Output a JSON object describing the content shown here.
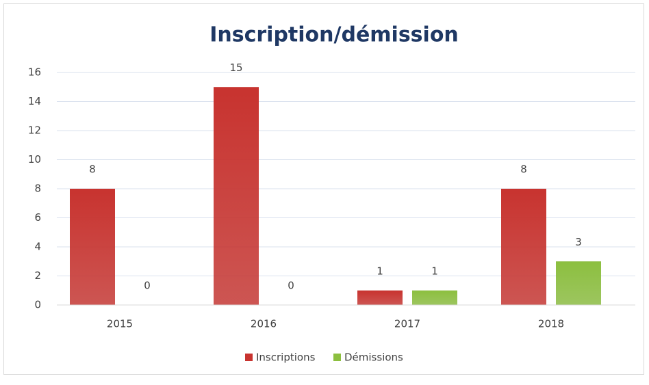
{
  "chart_data": {
    "type": "bar",
    "title": "Inscription/démission",
    "categories": [
      "2015",
      "2016",
      "2017",
      "2018"
    ],
    "series": [
      {
        "name": "Inscriptions",
        "color": "#c8332f",
        "values": [
          8,
          15,
          1,
          8
        ]
      },
      {
        "name": "Démissions",
        "color": "#8cbf3f",
        "values": [
          0,
          0,
          1,
          3
        ]
      }
    ],
    "ylim": [
      0,
      16
    ],
    "yticks": [
      0,
      2,
      4,
      6,
      8,
      10,
      12,
      14,
      16
    ],
    "grid": true,
    "legend": "bottom"
  }
}
